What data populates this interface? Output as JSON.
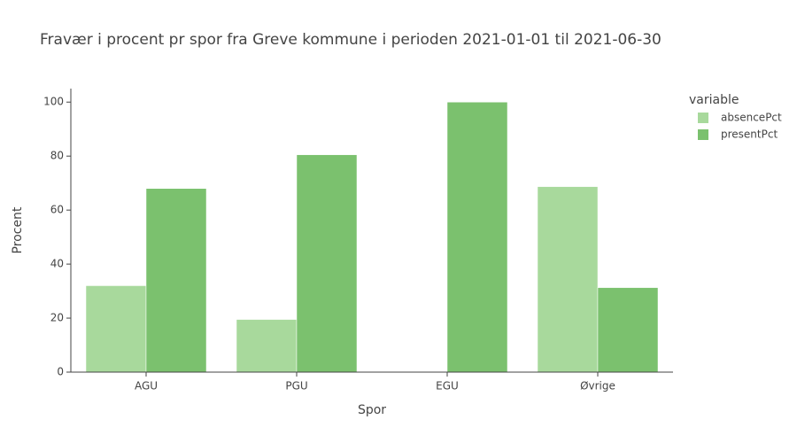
{
  "chart_data": {
    "type": "bar",
    "title": "Fravær i procent pr spor fra Greve kommune i perioden 2021-01-01 til 2021-06-30",
    "x_label": "Spor",
    "y_label": "Procent",
    "categories": [
      "AGU",
      "PGU",
      "EGU",
      "Øvrige"
    ],
    "series": [
      {
        "name": "absencePct",
        "color": "#a8d99c",
        "values": [
          32,
          19.5,
          0,
          68.7
        ]
      },
      {
        "name": "presentPct",
        "color": "#7bc16e",
        "values": [
          68,
          80.5,
          100,
          31.3
        ]
      }
    ],
    "legend_title": "variable",
    "ylim": [
      0,
      105
    ],
    "yticks": [
      0,
      20,
      40,
      60,
      80,
      100
    ],
    "grid": false
  }
}
